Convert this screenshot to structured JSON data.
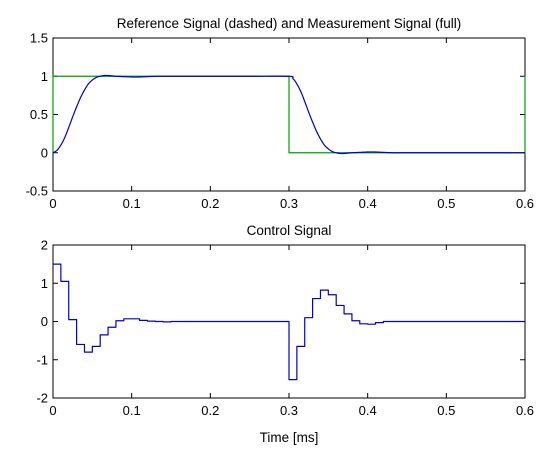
{
  "chart_data": [
    {
      "type": "line",
      "title": "Reference Signal (dashed) and Measurement Signal (full)",
      "xlabel": "",
      "ylabel": "",
      "xlim": [
        0,
        0.6
      ],
      "ylim": [
        -0.5,
        1.5
      ],
      "xticks": [
        "0",
        "0.1",
        "0.2",
        "0.3",
        "0.4",
        "0.5",
        "0.6"
      ],
      "yticks": [
        "-0.5",
        "0",
        "0.5",
        "1",
        "1.5"
      ],
      "xtick_values": [
        0,
        0.1,
        0.2,
        0.3,
        0.4,
        0.5,
        0.6
      ],
      "ytick_values": [
        -0.5,
        0,
        0.5,
        1,
        1.5
      ],
      "grid": false,
      "series": [
        {
          "color": "#00a000",
          "style": "step",
          "x": [
            0,
            0,
            0.3,
            0.3,
            0.6,
            0.6
          ],
          "y": [
            0,
            1,
            1,
            0,
            0,
            1
          ]
        },
        {
          "color": "#0000d0",
          "style": "smooth",
          "x": [
            0,
            0.005,
            0.01,
            0.015,
            0.02,
            0.025,
            0.03,
            0.035,
            0.04,
            0.045,
            0.05,
            0.055,
            0.06,
            0.065,
            0.07,
            0.075,
            0.08,
            0.09,
            0.1,
            0.11,
            0.12,
            0.13,
            0.14,
            0.15,
            0.2,
            0.25,
            0.3,
            0.305,
            0.31,
            0.315,
            0.32,
            0.325,
            0.33,
            0.335,
            0.34,
            0.345,
            0.35,
            0.355,
            0.36,
            0.365,
            0.37,
            0.375,
            0.38,
            0.39,
            0.4,
            0.41,
            0.42,
            0.43,
            0.44,
            0.45,
            0.5,
            0.55,
            0.6
          ],
          "y": [
            0,
            0.03,
            0.1,
            0.2,
            0.33,
            0.47,
            0.6,
            0.72,
            0.82,
            0.9,
            0.95,
            0.985,
            1.0,
            1.01,
            1.01,
            1.005,
            1.0,
            0.995,
            0.99,
            0.99,
            0.995,
            1.0,
            1.0,
            1.0,
            1.0,
            1.0,
            1.0,
            0.97,
            0.9,
            0.8,
            0.67,
            0.53,
            0.4,
            0.28,
            0.18,
            0.1,
            0.05,
            0.015,
            0.0,
            -0.01,
            -0.01,
            -0.005,
            0.0,
            0.005,
            0.01,
            0.01,
            0.005,
            0.0,
            0.0,
            0.0,
            0.0,
            0.0,
            0.0
          ]
        }
      ]
    },
    {
      "type": "line",
      "title": "Control Signal",
      "xlabel": "Time [ms]",
      "ylabel": "",
      "xlim": [
        0,
        0.6
      ],
      "ylim": [
        -2,
        2
      ],
      "xticks": [
        "0",
        "0.1",
        "0.2",
        "0.3",
        "0.4",
        "0.5",
        "0.6"
      ],
      "yticks": [
        "-2",
        "-1",
        "0",
        "1",
        "2"
      ],
      "xtick_values": [
        0,
        0.1,
        0.2,
        0.3,
        0.4,
        0.5,
        0.6
      ],
      "ytick_values": [
        -2,
        -1,
        0,
        1,
        2
      ],
      "grid": false,
      "series": [
        {
          "color": "#0000d0",
          "style": "step",
          "x": [
            0,
            0.01,
            0.02,
            0.03,
            0.04,
            0.05,
            0.06,
            0.07,
            0.08,
            0.09,
            0.1,
            0.11,
            0.12,
            0.13,
            0.14,
            0.15,
            0.3,
            0.31,
            0.32,
            0.33,
            0.34,
            0.35,
            0.36,
            0.37,
            0.38,
            0.39,
            0.4,
            0.41,
            0.42,
            0.43,
            0.6
          ],
          "y": [
            1.5,
            1.05,
            0.05,
            -0.6,
            -0.8,
            -0.65,
            -0.35,
            -0.15,
            0.02,
            0.07,
            0.07,
            0.03,
            0.01,
            0.0,
            -0.01,
            0.0,
            -1.52,
            -0.65,
            0.1,
            0.6,
            0.82,
            0.7,
            0.42,
            0.2,
            0.02,
            -0.06,
            -0.07,
            -0.03,
            0.0,
            0.0,
            0.0
          ]
        }
      ]
    }
  ]
}
